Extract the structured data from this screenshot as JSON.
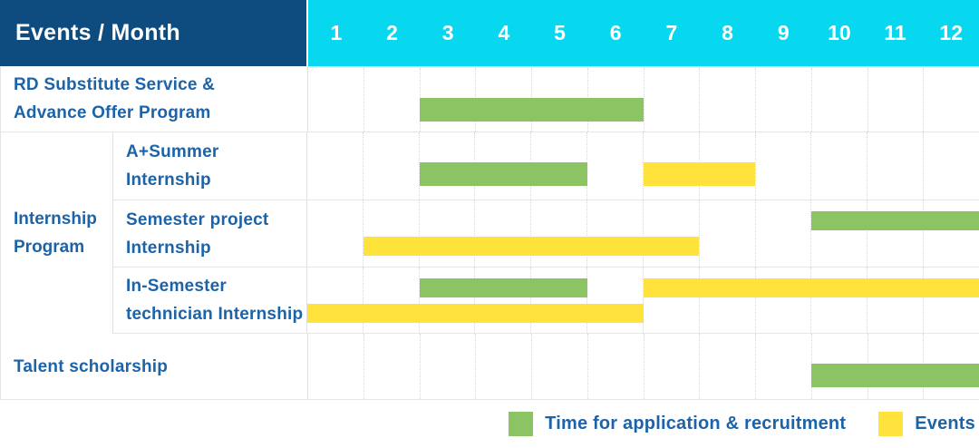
{
  "header": {
    "title": "Events / Month",
    "months": [
      "1",
      "2",
      "3",
      "4",
      "5",
      "6",
      "7",
      "8",
      "9",
      "10",
      "11",
      "12"
    ]
  },
  "colors": {
    "header_bg": "#0E4C7F",
    "months_bg": "#07D7EF",
    "label_text": "#1D63A8",
    "recruitment": "#8CC463",
    "event": "#FFE33C"
  },
  "legend": {
    "items": [
      {
        "key": "recruitment",
        "label": "Time for application & recruitment",
        "color": "#8CC463"
      },
      {
        "key": "event",
        "label": "Events",
        "color": "#FFE33C"
      }
    ]
  },
  "chart_data": {
    "type": "gantt",
    "title": "Events / Month",
    "x_unit": "month",
    "x_range": [
      1,
      12
    ],
    "group_label": "Internship Program",
    "group_label_lines": [
      "Internship",
      "Program"
    ],
    "categories_legend": {
      "recruitment": "Time for application & recruitment",
      "event": "Events"
    },
    "rows": [
      {
        "label": "RD Substitute Service & Advance Offer Program",
        "label_lines": [
          "RD Substitute Service &",
          "Advance Offer Program"
        ],
        "group": "",
        "bars": [
          {
            "category": "recruitment",
            "start_month": 3,
            "end_month": 6,
            "line": "single"
          }
        ]
      },
      {
        "label": "A+Summer Internship",
        "label_lines": [
          "A+Summer",
          "Internship"
        ],
        "group": "Internship Program",
        "bars": [
          {
            "category": "recruitment",
            "start_month": 3,
            "end_month": 5,
            "line": "single"
          },
          {
            "category": "event",
            "start_month": 7,
            "end_month": 8,
            "line": "single"
          }
        ]
      },
      {
        "label": "Semester project Internship",
        "label_lines": [
          "Semester project",
          "Internship"
        ],
        "group": "Internship Program",
        "bars": [
          {
            "category": "recruitment",
            "start_month": 10,
            "end_month": 12,
            "line": "top"
          },
          {
            "category": "event",
            "start_month": 2,
            "end_month": 7,
            "line": "bottom"
          }
        ]
      },
      {
        "label": "In-Semester technician Internship",
        "label_lines": [
          "In-Semester",
          "technician Internship"
        ],
        "group": "Internship Program",
        "bars": [
          {
            "category": "recruitment",
            "start_month": 3,
            "end_month": 5,
            "line": "top"
          },
          {
            "category": "event",
            "start_month": 7,
            "end_month": 12,
            "line": "top"
          },
          {
            "category": "event",
            "start_month": 1,
            "end_month": 6,
            "line": "bottom"
          }
        ]
      },
      {
        "label": "Talent scholarship",
        "label_lines": [
          "Talent scholarship"
        ],
        "group": "",
        "bars": [
          {
            "category": "recruitment",
            "start_month": 10,
            "end_month": 12,
            "line": "single"
          }
        ]
      }
    ]
  }
}
